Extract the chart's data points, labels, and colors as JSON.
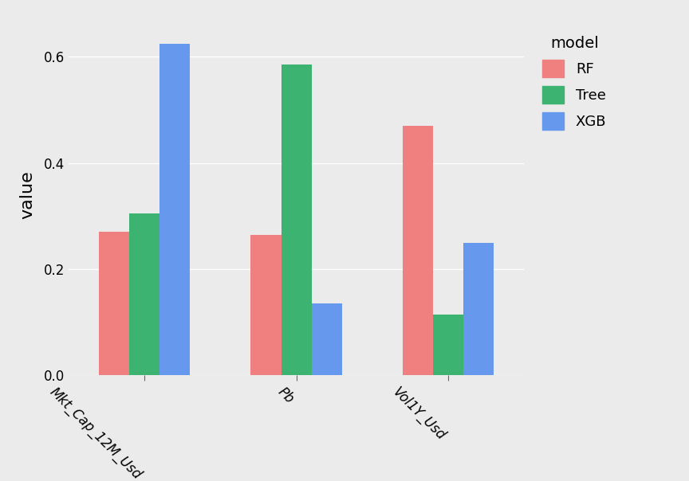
{
  "categories": [
    "Mkt_Cap_12M_Usd",
    "Pb",
    "Vol1Y_Usd"
  ],
  "models": [
    "RF",
    "Tree",
    "XGB"
  ],
  "values": {
    "RF": [
      0.27,
      0.265,
      0.47
    ],
    "Tree": [
      0.305,
      0.585,
      0.115
    ],
    "XGB": [
      0.625,
      0.135,
      0.25
    ]
  },
  "colors": {
    "RF": "#F08080",
    "Tree": "#3CB371",
    "XGB": "#6699EE"
  },
  "ylabel": "value",
  "legend_title": "model",
  "ylim": [
    0,
    0.68
  ],
  "yticks": [
    0.0,
    0.2,
    0.4,
    0.6
  ],
  "background_color": "#EBEBEB",
  "grid_color": "#FFFFFF",
  "axis_label_fontsize": 16,
  "tick_fontsize": 12,
  "legend_fontsize": 13
}
